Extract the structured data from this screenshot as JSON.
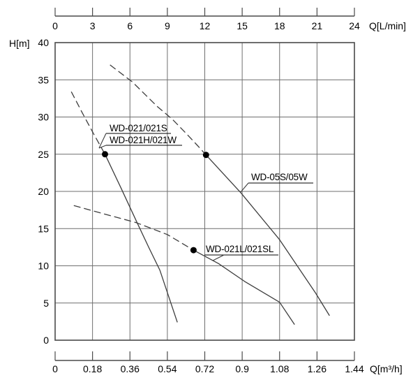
{
  "chart_data": {
    "type": "line",
    "title": "",
    "axes": {
      "top_x": {
        "label": "Q[L/min]",
        "ticks": [
          "0",
          "3",
          "6",
          "9",
          "12",
          "15",
          "18",
          "21",
          "24"
        ],
        "range": [
          0,
          24
        ]
      },
      "bottom_x": {
        "label": "Q[m³/h]",
        "ticks": [
          "0",
          "0.18",
          "0.36",
          "0.54",
          "0.72",
          "0.9",
          "1.08",
          "1.26",
          "1.44"
        ],
        "range": [
          0,
          1.44
        ]
      },
      "y": {
        "label": "H[m]",
        "ticks": [
          "40",
          "35",
          "30",
          "25",
          "20",
          "15",
          "10",
          "5",
          "0"
        ],
        "range": [
          0,
          40
        ]
      }
    },
    "grid": true,
    "legend_position": "inline-callouts",
    "x_unit": "L/min",
    "y_unit": "m",
    "series": [
      {
        "name": "WD-021/021S / WD-021H/021W",
        "dashed_points": [
          [
            1.3,
            33.4
          ],
          [
            2.2,
            30.5
          ],
          [
            3.1,
            27.7
          ],
          [
            4.0,
            25.0
          ]
        ],
        "solid_points": [
          [
            4.0,
            25.0
          ],
          [
            5.3,
            20.4
          ],
          [
            6.6,
            15.7
          ],
          [
            7.5,
            12.5
          ],
          [
            8.4,
            9.4
          ],
          [
            9.8,
            2.4
          ]
        ],
        "marker": [
          4.0,
          25.0
        ]
      },
      {
        "name": "WD-05S/05W",
        "dashed_points": [
          [
            4.4,
            37.0
          ],
          [
            6.2,
            34.7
          ],
          [
            8.2,
            31.4
          ],
          [
            9.4,
            29.7
          ],
          [
            10.5,
            27.8
          ],
          [
            11.4,
            26.2
          ],
          [
            12.1,
            24.9
          ]
        ],
        "solid_points": [
          [
            12.1,
            24.9
          ],
          [
            14.9,
            19.8
          ],
          [
            18.0,
            13.5
          ],
          [
            20.9,
            6.3
          ],
          [
            22.0,
            3.3
          ]
        ],
        "marker": [
          12.1,
          24.9
        ]
      },
      {
        "name": "WD-021L/021SL",
        "dashed_points": [
          [
            1.5,
            18.1
          ],
          [
            3.0,
            17.4
          ],
          [
            6.5,
            15.8
          ],
          [
            9.0,
            14.2
          ],
          [
            11.1,
            12.1
          ]
        ],
        "solid_points": [
          [
            11.1,
            12.1
          ],
          [
            13.1,
            10.3
          ],
          [
            15.2,
            7.9
          ],
          [
            18.0,
            5.1
          ],
          [
            19.2,
            2.1
          ]
        ],
        "marker": [
          11.1,
          12.1
        ]
      }
    ],
    "annotations": [
      {
        "lines": [
          "WD-021/021S",
          "WD-021H/021W"
        ]
      },
      {
        "lines": [
          "WD-05S/05W"
        ]
      },
      {
        "lines": [
          "WD-021L/021SL"
        ]
      }
    ],
    "colors": {
      "curve": "#3d3d3d",
      "grid": "#6f6f6f",
      "border": "#4a4a4a",
      "axis": "#4a4a4a",
      "text": "#000000",
      "marker": "#000000",
      "background": "#ffffff"
    }
  }
}
